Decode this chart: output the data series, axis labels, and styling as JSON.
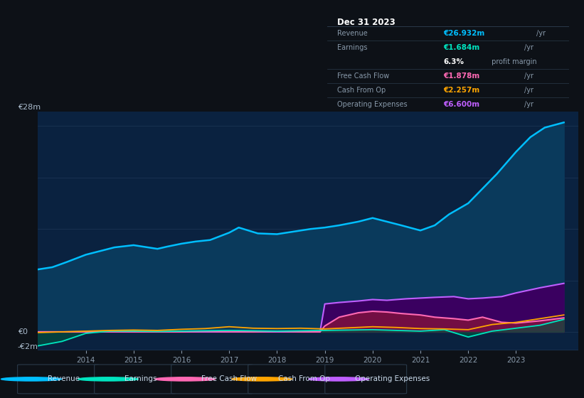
{
  "bg_color": "#0d1117",
  "plot_bg_color": "#0a2240",
  "box_bg_color": "#0a0e14",
  "title_box_bg": "#000000",
  "y_label_top": "€28m",
  "y_label_zero": "€0",
  "y_label_neg": "-€2m",
  "ylim": [
    -2.5,
    30
  ],
  "xlim": [
    2013.0,
    2024.3
  ],
  "x_ticks": [
    2014,
    2015,
    2016,
    2017,
    2018,
    2019,
    2020,
    2021,
    2022,
    2023
  ],
  "revenue_x": [
    2013.0,
    2013.3,
    2013.6,
    2014.0,
    2014.3,
    2014.6,
    2015.0,
    2015.3,
    2015.5,
    2015.7,
    2016.0,
    2016.3,
    2016.6,
    2017.0,
    2017.2,
    2017.4,
    2017.6,
    2018.0,
    2018.3,
    2018.7,
    2019.0,
    2019.3,
    2019.7,
    2020.0,
    2020.3,
    2020.6,
    2021.0,
    2021.3,
    2021.6,
    2022.0,
    2022.3,
    2022.6,
    2023.0,
    2023.3,
    2023.6,
    2024.0
  ],
  "revenue_y": [
    8.5,
    8.8,
    9.5,
    10.5,
    11.0,
    11.5,
    11.8,
    11.5,
    11.3,
    11.6,
    12.0,
    12.3,
    12.5,
    13.5,
    14.2,
    13.8,
    13.4,
    13.3,
    13.6,
    14.0,
    14.2,
    14.5,
    15.0,
    15.5,
    15.0,
    14.5,
    13.8,
    14.5,
    16.0,
    17.5,
    19.5,
    21.5,
    24.5,
    26.5,
    27.8,
    28.5
  ],
  "earnings_x": [
    2013.0,
    2013.5,
    2014.0,
    2014.5,
    2015.0,
    2015.5,
    2016.0,
    2016.5,
    2017.0,
    2017.5,
    2018.0,
    2018.5,
    2019.0,
    2019.5,
    2020.0,
    2020.5,
    2021.0,
    2021.5,
    2022.0,
    2022.5,
    2023.0,
    2023.5,
    2024.0
  ],
  "earnings_y": [
    -1.9,
    -1.3,
    -0.2,
    0.1,
    0.1,
    0.05,
    0.1,
    0.15,
    0.2,
    0.15,
    0.1,
    0.15,
    0.2,
    0.25,
    0.3,
    0.2,
    0.1,
    0.3,
    -0.7,
    0.1,
    0.5,
    0.9,
    1.7
  ],
  "fcf_x": [
    2013.0,
    2013.5,
    2014.0,
    2014.5,
    2015.0,
    2015.5,
    2016.0,
    2016.5,
    2017.0,
    2017.5,
    2018.0,
    2018.5,
    2018.9,
    2019.0,
    2019.3,
    2019.7,
    2020.0,
    2020.3,
    2020.6,
    2021.0,
    2021.3,
    2021.7,
    2022.0,
    2022.3,
    2022.7,
    2023.0,
    2023.5,
    2024.0
  ],
  "fcf_y": [
    0.0,
    0.0,
    0.0,
    0.02,
    0.0,
    0.0,
    0.0,
    0.05,
    0.02,
    0.0,
    0.05,
    0.0,
    0.0,
    0.8,
    2.0,
    2.6,
    2.8,
    2.7,
    2.5,
    2.3,
    2.0,
    1.8,
    1.6,
    2.0,
    1.3,
    1.2,
    1.5,
    1.9
  ],
  "cfo_x": [
    2013.0,
    2013.5,
    2014.0,
    2014.5,
    2015.0,
    2015.5,
    2016.0,
    2016.5,
    2017.0,
    2017.5,
    2018.0,
    2018.5,
    2019.0,
    2019.5,
    2020.0,
    2020.5,
    2021.0,
    2021.5,
    2022.0,
    2022.5,
    2023.0,
    2023.5,
    2024.0
  ],
  "cfo_y": [
    -0.1,
    0.0,
    0.1,
    0.2,
    0.25,
    0.2,
    0.35,
    0.45,
    0.7,
    0.5,
    0.45,
    0.5,
    0.4,
    0.55,
    0.7,
    0.6,
    0.45,
    0.4,
    0.3,
    1.0,
    1.3,
    1.8,
    2.3
  ],
  "oe_x": [
    2013.0,
    2018.9,
    2019.0,
    2019.3,
    2019.7,
    2020.0,
    2020.3,
    2020.7,
    2021.0,
    2021.3,
    2021.7,
    2022.0,
    2022.3,
    2022.7,
    2023.0,
    2023.5,
    2024.0
  ],
  "oe_y": [
    0.0,
    0.0,
    3.8,
    4.0,
    4.2,
    4.4,
    4.3,
    4.5,
    4.6,
    4.7,
    4.8,
    4.5,
    4.6,
    4.8,
    5.3,
    6.0,
    6.6
  ],
  "revenue_color": "#00bfff",
  "revenue_fill": "#0a3a5c",
  "earnings_color": "#00e5c0",
  "fcf_color": "#ff69b4",
  "fcf_fill": "#7a1040",
  "cfo_color": "#ffa500",
  "oe_color": "#bf5fff",
  "oe_fill": "#3a0060",
  "h_grid_y": [
    0,
    7,
    14,
    21,
    28
  ],
  "grid_color": "#1a3352",
  "text_color": "#8899aa",
  "label_color": "#aabbcc",
  "white_color": "#ffffff",
  "legend": [
    {
      "label": "Revenue",
      "color": "#00bfff"
    },
    {
      "label": "Earnings",
      "color": "#00e5c0"
    },
    {
      "label": "Free Cash Flow",
      "color": "#ff69b4"
    },
    {
      "label": "Cash From Op",
      "color": "#ffa500"
    },
    {
      "label": "Operating Expenses",
      "color": "#bf5fff"
    }
  ],
  "info_date": "Dec 31 2023",
  "info_rows": [
    {
      "label": "Revenue",
      "value": "€26.932m",
      "unit": "/yr",
      "color": "#00bfff",
      "sep_after": true
    },
    {
      "label": "Earnings",
      "value": "€1.684m",
      "unit": "/yr",
      "color": "#00e5c0",
      "sep_after": false
    },
    {
      "label": "",
      "value": "6.3%",
      "unit": " profit margin",
      "color": "#ffffff",
      "sep_after": true
    },
    {
      "label": "Free Cash Flow",
      "value": "€1.878m",
      "unit": "/yr",
      "color": "#ff69b4",
      "sep_after": true
    },
    {
      "label": "Cash From Op",
      "value": "€2.257m",
      "unit": "/yr",
      "color": "#ffa500",
      "sep_after": true
    },
    {
      "label": "Operating Expenses",
      "value": "€6.600m",
      "unit": "/yr",
      "color": "#bf5fff",
      "sep_after": false
    }
  ]
}
